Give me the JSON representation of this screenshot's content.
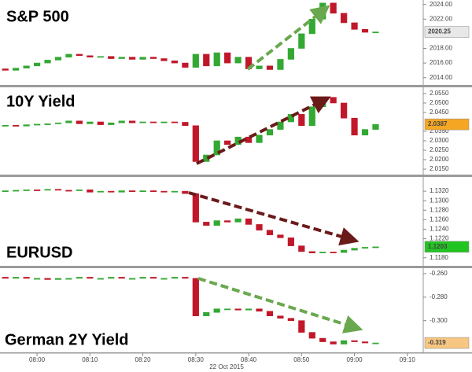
{
  "chart_data": [
    {
      "type": "candlestick",
      "title": "S&P 500",
      "color_up": "#33a833",
      "color_down": "#c0182a",
      "last_color": "#e8e8e8",
      "ylim": [
        2013.0,
        2024.4
      ],
      "yticks": [
        {
          "value": 2014,
          "label": "2014.00"
        },
        {
          "value": 2016,
          "label": "2016.00"
        },
        {
          "value": 2018,
          "label": "2018.00"
        },
        {
          "value": 2022,
          "label": "2022.00"
        },
        {
          "value": 2024,
          "label": "2024.00"
        }
      ],
      "open": [
        2015.2,
        2015.0,
        2015.3,
        2015.6,
        2016.0,
        2016.4,
        2016.8,
        2017.2,
        2017.0,
        2016.8,
        2016.9,
        2016.6,
        2016.8,
        2016.5,
        2016.8,
        2016.6,
        2016.3,
        2016.0,
        2015.4,
        2017.2,
        2015.6,
        2017.4,
        2016.0,
        2016.8,
        2015.2,
        2015.6,
        2015.1,
        2016.5,
        2018.0,
        2020.0,
        2022.0,
        2024.2,
        2022.8,
        2021.5,
        2020.6,
        2020.2,
        null,
        null,
        null,
        null
      ],
      "close": [
        2015.0,
        2015.3,
        2015.6,
        2016.0,
        2016.4,
        2016.8,
        2017.2,
        2017.0,
        2016.8,
        2016.9,
        2016.6,
        2016.8,
        2016.5,
        2016.8,
        2016.6,
        2016.3,
        2016.0,
        2015.4,
        2017.2,
        2015.6,
        2017.4,
        2016.0,
        2016.8,
        2015.2,
        2015.6,
        2015.1,
        2016.5,
        2018.0,
        2020.0,
        2022.0,
        2024.2,
        2022.8,
        2021.5,
        2020.6,
        2020.2,
        2020.25,
        null,
        null,
        null,
        null
      ]
    },
    {
      "type": "candlestick",
      "title": "10Y Yield",
      "color_up": "#33a833",
      "color_down": "#c0182a",
      "last_color": "#f5a623",
      "ylim": [
        2.0121,
        2.0579
      ],
      "yticks": [
        {
          "value": 2.015,
          "label": "2.0150"
        },
        {
          "value": 2.02,
          "label": "2.0200"
        },
        {
          "value": 2.025,
          "label": "2.0250"
        },
        {
          "value": 2.03,
          "label": "2.0300"
        },
        {
          "value": 2.035,
          "label": "2.0350"
        },
        {
          "value": 2.045,
          "label": "2.0450"
        },
        {
          "value": 2.05,
          "label": "2.0500"
        },
        {
          "value": 2.055,
          "label": "2.0550"
        }
      ],
      "open": [
        2.038,
        2.0382,
        2.0378,
        2.0385,
        2.0388,
        2.039,
        2.0395,
        2.0405,
        2.039,
        2.04,
        2.0385,
        2.0395,
        2.0405,
        2.0395,
        2.04,
        2.0398,
        2.04,
        2.0398,
        2.038,
        2.019,
        2.0225,
        2.03,
        2.028,
        2.032,
        2.029,
        2.033,
        2.036,
        2.04,
        2.044,
        2.038,
        2.048,
        2.053,
        2.05,
        2.042,
        2.033,
        2.036,
        null,
        null,
        null,
        null
      ],
      "close": [
        2.0382,
        2.0378,
        2.0385,
        2.0388,
        2.039,
        2.0395,
        2.0405,
        2.039,
        2.04,
        2.0385,
        2.0395,
        2.0405,
        2.0395,
        2.04,
        2.0398,
        2.04,
        2.0398,
        2.038,
        2.019,
        2.0225,
        2.03,
        2.028,
        2.032,
        2.029,
        2.033,
        2.036,
        2.04,
        2.044,
        2.038,
        2.048,
        2.053,
        2.05,
        2.042,
        2.033,
        2.036,
        2.0387,
        null,
        null,
        null,
        null
      ]
    },
    {
      "type": "candlestick",
      "title": "EURUSD",
      "color_up": "#33a833",
      "color_down": "#c0182a",
      "last_color": "#22c422",
      "ylim": [
        1.1163,
        1.1345
      ],
      "yticks": [
        {
          "value": 1.118,
          "label": "1.1180"
        },
        {
          "value": 1.122,
          "label": "1.1220"
        },
        {
          "value": 1.124,
          "label": "1.1240"
        },
        {
          "value": 1.126,
          "label": "1.1260"
        },
        {
          "value": 1.128,
          "label": "1.1280"
        },
        {
          "value": 1.13,
          "label": "1.1300"
        },
        {
          "value": 1.132,
          "label": "1.1320"
        }
      ],
      "open": [
        1.132,
        1.1321,
        1.1322,
        1.1323,
        1.1322,
        1.1324,
        1.1322,
        1.1321,
        1.1323,
        1.1318,
        1.132,
        1.1318,
        1.1321,
        1.1319,
        1.1321,
        1.132,
        1.1318,
        1.132,
        1.1315,
        1.1255,
        1.1248,
        1.1258,
        1.1255,
        1.1262,
        1.125,
        1.1238,
        1.1228,
        1.1222,
        1.1205,
        1.1193,
        1.119,
        1.1192,
        1.1191,
        1.1196,
        1.12,
        1.1202,
        null,
        null,
        null,
        null
      ],
      "close": [
        1.1321,
        1.1322,
        1.1323,
        1.1322,
        1.1324,
        1.1322,
        1.1321,
        1.1323,
        1.1318,
        1.132,
        1.1318,
        1.1321,
        1.1319,
        1.1321,
        1.132,
        1.1318,
        1.132,
        1.1315,
        1.1255,
        1.1248,
        1.1258,
        1.1255,
        1.1262,
        1.125,
        1.1238,
        1.1228,
        1.1222,
        1.1205,
        1.1193,
        1.119,
        1.1192,
        1.1191,
        1.1196,
        1.12,
        1.1202,
        1.1203,
        null,
        null,
        null,
        null
      ]
    },
    {
      "type": "candlestick",
      "title": "German 2Y Yield",
      "color_up": "#33a833",
      "color_down": "#c0182a",
      "last_color": "#f7c680",
      "ylim": [
        -0.327,
        -0.256
      ],
      "yticks": [
        {
          "value": -0.26,
          "label": "-0.260"
        },
        {
          "value": -0.28,
          "label": "-0.280"
        },
        {
          "value": -0.3,
          "label": "-0.300"
        }
      ],
      "open": [
        -0.263,
        -0.264,
        -0.263,
        -0.264,
        -0.264,
        -0.265,
        -0.264,
        -0.264,
        -0.263,
        -0.264,
        -0.264,
        -0.263,
        -0.264,
        -0.264,
        -0.263,
        -0.264,
        -0.264,
        -0.263,
        -0.264,
        -0.296,
        -0.293,
        -0.29,
        -0.29,
        -0.291,
        -0.29,
        -0.292,
        -0.296,
        -0.298,
        -0.3,
        -0.31,
        -0.315,
        -0.318,
        -0.32,
        -0.317,
        -0.318,
        -0.319,
        null,
        null,
        null,
        null
      ],
      "close": [
        -0.264,
        -0.263,
        -0.264,
        -0.264,
        -0.265,
        -0.264,
        -0.264,
        -0.263,
        -0.264,
        -0.264,
        -0.263,
        -0.264,
        -0.264,
        -0.263,
        -0.264,
        -0.264,
        -0.263,
        -0.264,
        -0.296,
        -0.293,
        -0.29,
        -0.29,
        -0.291,
        -0.29,
        -0.292,
        -0.296,
        -0.298,
        -0.3,
        -0.31,
        -0.315,
        -0.318,
        -0.32,
        -0.317,
        -0.318,
        -0.319,
        -0.319,
        null,
        null,
        null,
        null
      ],
      "categories": [
        null,
        null,
        null,
        "08:00",
        null,
        null,
        null,
        null,
        "08:10",
        null,
        null,
        null,
        null,
        "08:20",
        null,
        null,
        null,
        null,
        "08:30",
        null,
        null,
        null,
        null,
        "08:40",
        null,
        null,
        null,
        null,
        "08:50",
        null,
        null,
        null,
        null,
        "09:00",
        null,
        null,
        null,
        null,
        "09:10",
        null
      ],
      "xlabel": "22 Oct 2015"
    }
  ]
}
